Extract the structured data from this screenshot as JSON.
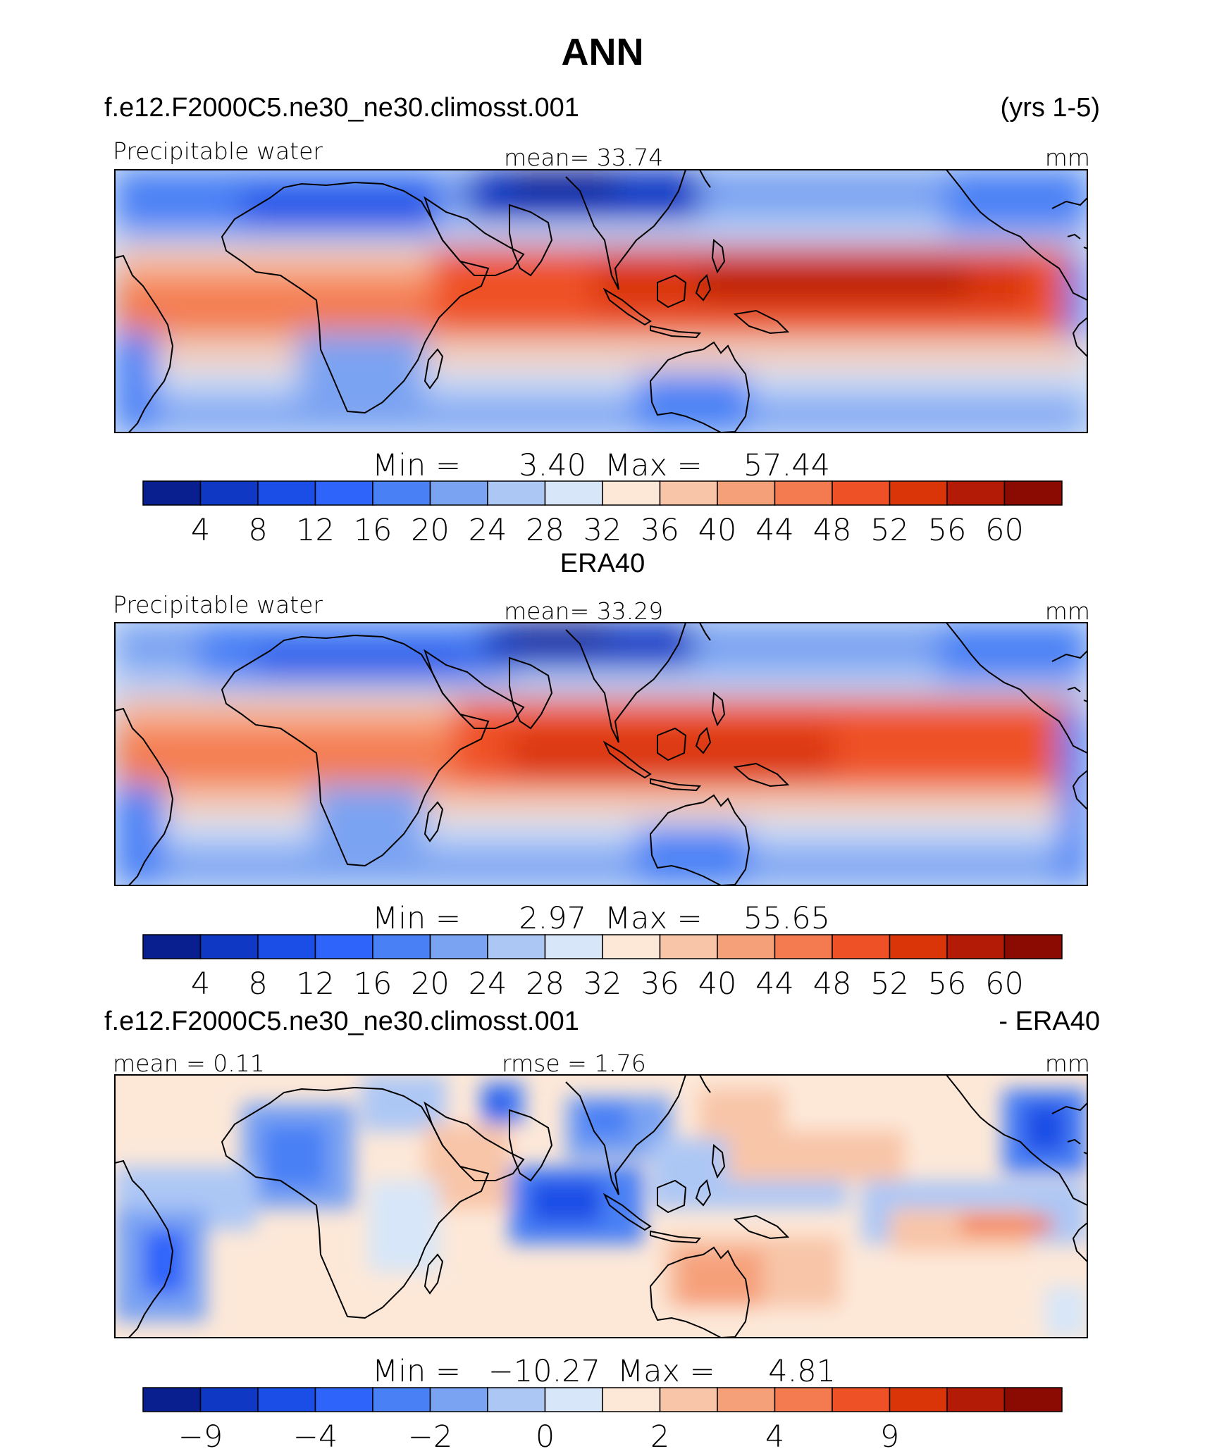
{
  "chart_data": [
    {
      "type": "heatmap",
      "title": "ANN",
      "case_left": "f.e12.F2000C5.ne30_ne30.climosst.001",
      "case_right": "(yrs 1-5)",
      "label_left": "Precipitable water",
      "label_center": "mean=   33.74",
      "label_right": "mm",
      "min_label": "Min  =",
      "min_value": "3.40",
      "max_label": "Max  =",
      "max_value": "57.44",
      "colorbar": {
        "levels": [
          "4",
          "8",
          "12",
          "16",
          "20",
          "24",
          "28",
          "32",
          "36",
          "40",
          "44",
          "48",
          "52",
          "56",
          "60"
        ],
        "colors": [
          "#0a1f8f",
          "#0f38c4",
          "#1a4ee6",
          "#2e64fa",
          "#4a80f5",
          "#7aa3f2",
          "#adc7f5",
          "#d7e6f8",
          "#fde8d8",
          "#f8c5a8",
          "#f6a07a",
          "#f47b4f",
          "#ef5126",
          "#da3409",
          "#b31b06",
          "#8b0a02"
        ]
      }
    },
    {
      "type": "heatmap",
      "title": "ERA40",
      "label_left": "Precipitable water",
      "label_center": "mean=   33.29",
      "label_right": "mm",
      "min_label": "Min  =",
      "min_value": "2.97",
      "max_label": "Max  =",
      "max_value": "55.65",
      "colorbar": {
        "levels": [
          "4",
          "8",
          "12",
          "16",
          "20",
          "24",
          "28",
          "32",
          "36",
          "40",
          "44",
          "48",
          "52",
          "56",
          "60"
        ],
        "colors": [
          "#0a1f8f",
          "#0f38c4",
          "#1a4ee6",
          "#2e64fa",
          "#4a80f5",
          "#7aa3f2",
          "#adc7f5",
          "#d7e6f8",
          "#fde8d8",
          "#f8c5a8",
          "#f6a07a",
          "#f47b4f",
          "#ef5126",
          "#da3409",
          "#b31b06",
          "#8b0a02"
        ]
      }
    },
    {
      "type": "heatmap",
      "case_left": "f.e12.F2000C5.ne30_ne30.climosst.001",
      "case_right": "- ERA40",
      "label_left": "mean =    0.11",
      "label_center": "rmse  =     1.76",
      "label_right": "mm",
      "min_label": "Min  =",
      "min_value": "−10.27",
      "max_label": "Max  =",
      "max_value": "4.81",
      "colorbar": {
        "levels": [
          "−9",
          "",
          "−4",
          "",
          "−2",
          "",
          "0",
          "",
          "2",
          "",
          "4",
          "",
          "9",
          "",
          ""
        ],
        "colors": [
          "#0a1f8f",
          "#0f38c4",
          "#1a4ee6",
          "#2e64fa",
          "#4a80f5",
          "#7aa3f2",
          "#adc7f5",
          "#d7e6f8",
          "#fde8d8",
          "#f8c5a8",
          "#f6a07a",
          "#f47b4f",
          "#ef5126",
          "#da3409",
          "#b31b06",
          "#8b0a02"
        ]
      }
    }
  ]
}
